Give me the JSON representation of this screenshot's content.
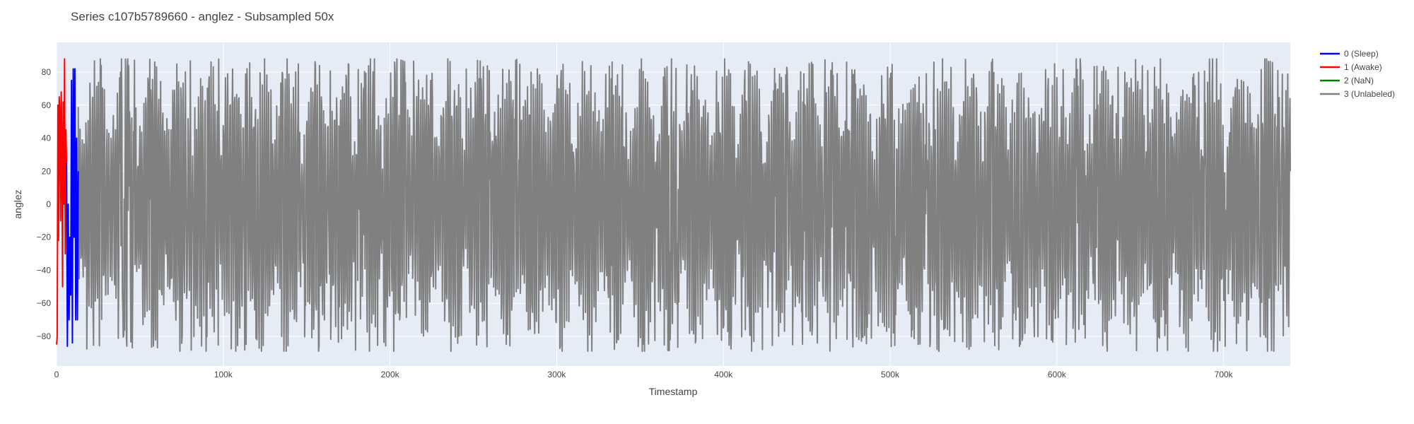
{
  "chart_data": {
    "type": "line",
    "title": "Series c107b5789660 - anglez - Subsampled 50x",
    "xlabel": "Timestamp",
    "ylabel": "anglez",
    "xlim": [
      0,
      740000
    ],
    "ylim": [
      -98,
      98
    ],
    "x_ticks": [
      0,
      100000,
      200000,
      300000,
      400000,
      500000,
      600000,
      700000
    ],
    "x_tick_labels": [
      "0",
      "100k",
      "200k",
      "300k",
      "400k",
      "500k",
      "600k",
      "700k"
    ],
    "y_ticks": [
      80,
      60,
      40,
      20,
      0,
      -20,
      -40,
      -60,
      -80
    ],
    "y_tick_labels": [
      "80",
      "60",
      "40",
      "20",
      "0",
      "−20",
      "−40",
      "−60",
      "−80"
    ],
    "grid": true,
    "legend_position": "top-right",
    "series": [
      {
        "name": "0 (Sleep)",
        "color": "#0000ff",
        "x": [
          6000,
          6500,
          7000,
          7500,
          8000,
          8500,
          9000,
          9500,
          10000,
          10500,
          11000,
          11500,
          12000,
          12500,
          13000
        ],
        "y": [
          25,
          -86,
          0,
          -70,
          -20,
          -55,
          75,
          -84,
          82,
          -20,
          82,
          -70,
          40,
          -70,
          20
        ]
      },
      {
        "name": "1 (Awake)",
        "color": "#ff0000",
        "x": [
          0,
          400,
          800,
          1200,
          1600,
          2000,
          2400,
          2800,
          3200,
          3600,
          4000,
          4400,
          4800,
          5200,
          5600,
          6000
        ],
        "y": [
          -85,
          -80,
          60,
          -22,
          65,
          55,
          -10,
          68,
          40,
          -50,
          62,
          0,
          88,
          -30,
          45,
          25
        ]
      },
      {
        "name": "2 (NaN)",
        "color": "#008000",
        "x": [],
        "y": []
      },
      {
        "name": "3 (Unlabeled)",
        "color": "#808080",
        "x_range": [
          13000,
          740000
        ],
        "y_min": -89,
        "y_max": 88,
        "note_points": [
          [
            13000,
            20
          ],
          [
            740000,
            20
          ]
        ]
      }
    ]
  }
}
